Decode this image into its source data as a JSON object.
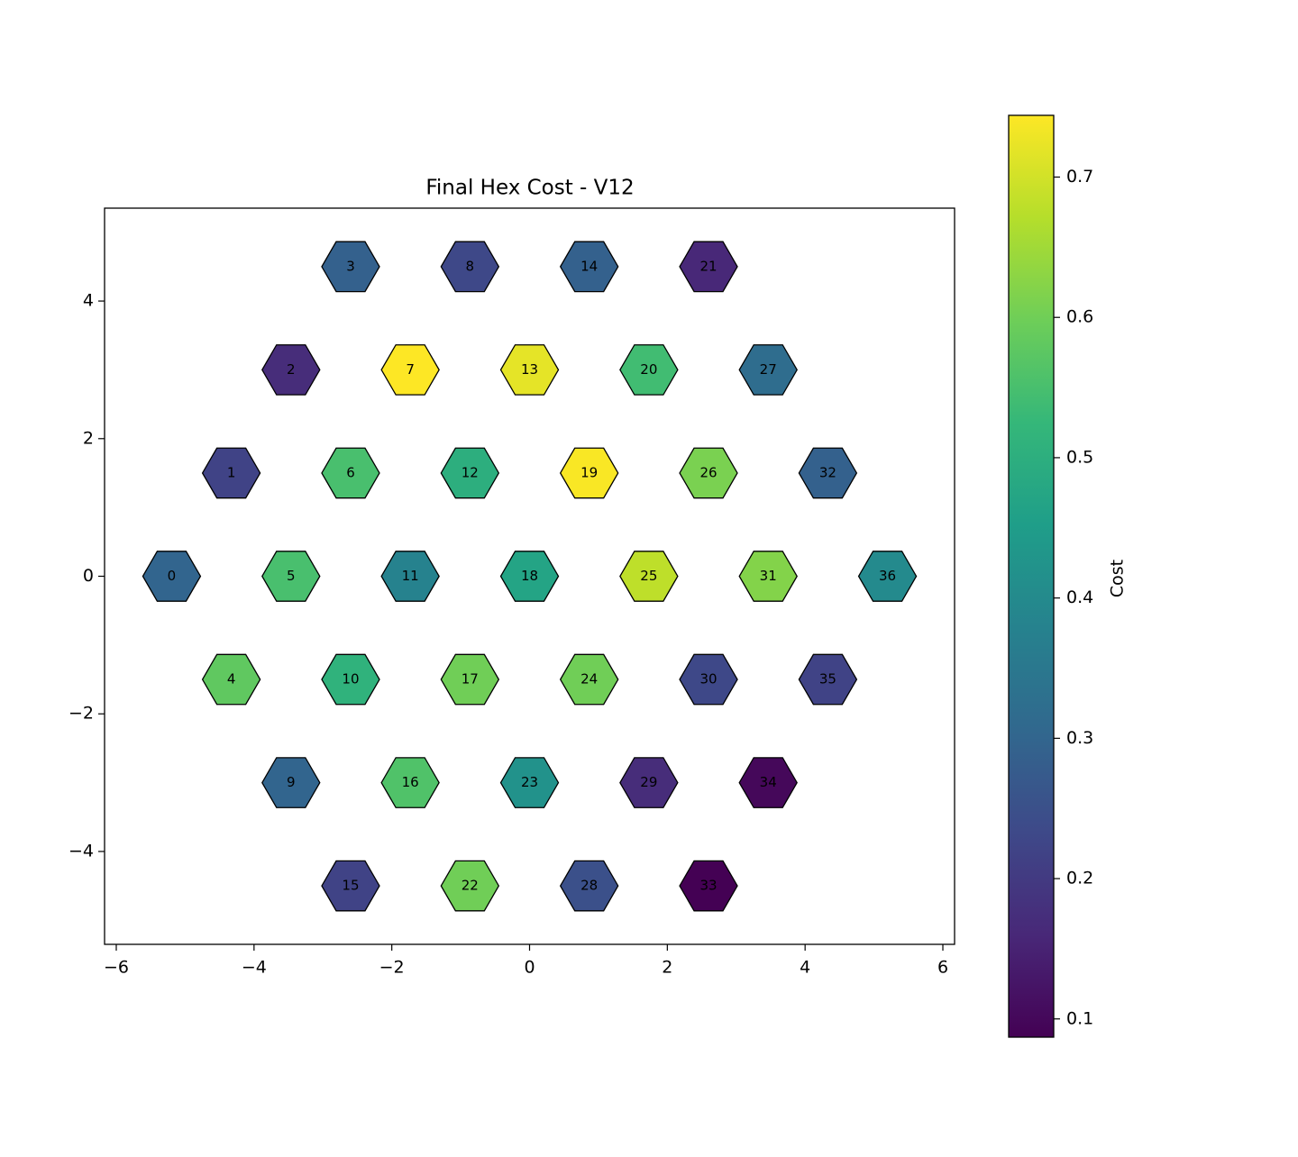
{
  "chart_data": {
    "type": "hexmap",
    "title": "Final Hex Cost - V12",
    "x": [
      -5.196,
      -4.33,
      -3.464,
      -2.598,
      -4.33,
      -3.464,
      -2.598,
      -1.732,
      -0.866,
      -3.464,
      -2.598,
      -1.732,
      -0.866,
      0,
      0.866,
      -2.598,
      -1.732,
      -0.866,
      0,
      0.866,
      1.732,
      2.598,
      -0.866,
      0,
      0.866,
      1.732,
      2.598,
      3.464,
      0.866,
      1.732,
      2.598,
      3.464,
      4.33,
      2.598,
      3.464,
      4.33,
      5.196
    ],
    "y": [
      0,
      1.5,
      3,
      4.5,
      -1.5,
      0,
      1.5,
      3,
      4.5,
      -3,
      -1.5,
      0,
      1.5,
      3,
      4.5,
      -4.5,
      -3,
      -1.5,
      0,
      1.5,
      3,
      4.5,
      -4.5,
      -3,
      -1.5,
      0,
      1.5,
      3,
      -4.5,
      -3,
      -1.5,
      0,
      1.5,
      -4.5,
      -3,
      -1.5,
      0
    ],
    "labels": [
      "0",
      "1",
      "2",
      "3",
      "4",
      "5",
      "6",
      "7",
      "8",
      "9",
      "10",
      "11",
      "12",
      "13",
      "14",
      "15",
      "16",
      "17",
      "18",
      "19",
      "20",
      "21",
      "22",
      "23",
      "24",
      "25",
      "26",
      "27",
      "28",
      "29",
      "30",
      "31",
      "32",
      "33",
      "34",
      "35",
      "36"
    ],
    "values": [
      0.3,
      0.22,
      0.17,
      0.29,
      0.58,
      0.55,
      0.55,
      0.744,
      0.23,
      0.3,
      0.51,
      0.38,
      0.5,
      0.72,
      0.29,
      0.22,
      0.56,
      0.6,
      0.47,
      0.74,
      0.54,
      0.16,
      0.6,
      0.42,
      0.6,
      0.68,
      0.61,
      0.32,
      0.25,
      0.17,
      0.23,
      0.62,
      0.29,
      0.087,
      0.1,
      0.22,
      0.4
    ],
    "colormap": "viridis",
    "xlim": [
      -6.17,
      6.17
    ],
    "ylim": [
      -5.35,
      5.35
    ],
    "xticks": [
      {
        "value": -6,
        "label": "−6"
      },
      {
        "value": -4,
        "label": "−4"
      },
      {
        "value": -2,
        "label": "−2"
      },
      0,
      2,
      4,
      6
    ],
    "yticks": [
      {
        "value": -4,
        "label": "−4"
      },
      {
        "value": -2,
        "label": "−2"
      },
      0,
      2,
      4
    ],
    "colorbar": {
      "label": "Cost",
      "clim": [
        0.087,
        0.744
      ],
      "ticks": [
        0.1,
        0.2,
        0.3,
        0.4,
        0.5,
        0.6,
        0.7
      ]
    }
  }
}
